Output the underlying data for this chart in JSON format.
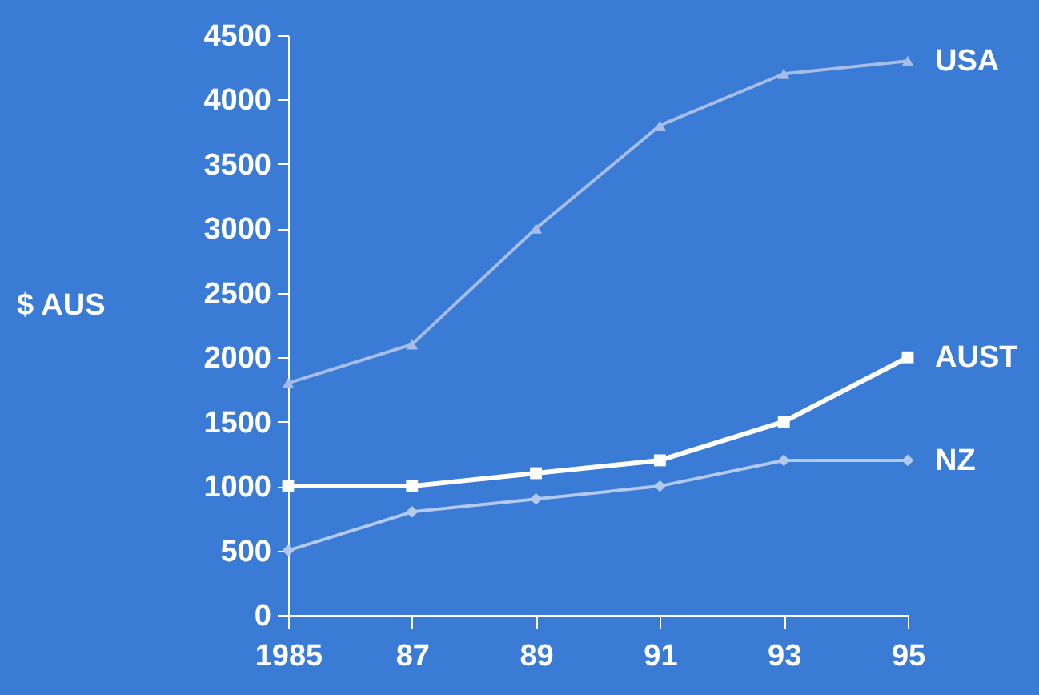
{
  "chart_data": {
    "type": "line",
    "ylabel": "$ AUS",
    "categories": [
      "1985",
      "87",
      "89",
      "91",
      "93",
      "95"
    ],
    "ylim": [
      0,
      4500
    ],
    "yticks": [
      0,
      500,
      1000,
      1500,
      2000,
      2500,
      3000,
      3500,
      4000,
      4500
    ],
    "grid": false,
    "series": [
      {
        "name": "USA",
        "color": "#a6bde8",
        "marker": "triangle",
        "values": [
          1800,
          2100,
          3000,
          3800,
          4200,
          4300
        ]
      },
      {
        "name": "AUST",
        "color": "#ffffff",
        "marker": "square",
        "values": [
          1000,
          1000,
          1100,
          1200,
          1500,
          2000
        ]
      },
      {
        "name": "NZ",
        "color": "#b4c9ee",
        "marker": "diamond",
        "values": [
          500,
          800,
          900,
          1000,
          1200,
          1200
        ]
      }
    ]
  }
}
